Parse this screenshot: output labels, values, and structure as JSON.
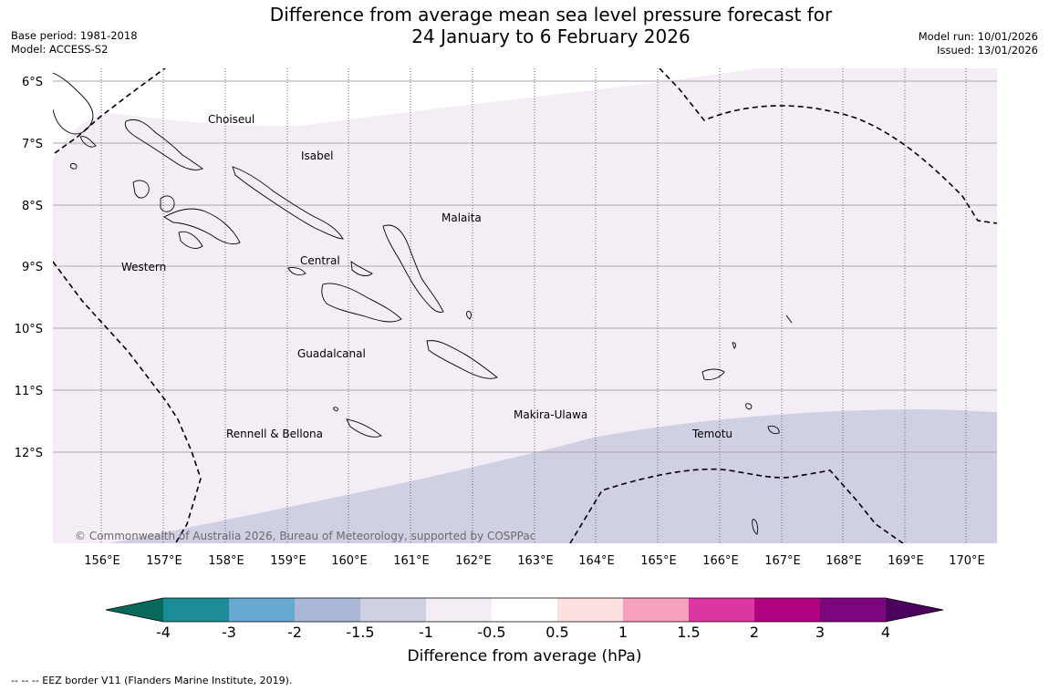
{
  "title": {
    "line1": "Difference from average mean sea level pressure forecast for",
    "line2": "24 January to 6 February 2026"
  },
  "meta": {
    "base_period": "Base period: 1981-2018",
    "model": "Model: ACCESS-S2",
    "model_run": "Model run: 10/01/2026",
    "issued": "Issued: 13/01/2026"
  },
  "map": {
    "lat_labels": [
      "6°S",
      "7°S",
      "8°S",
      "9°S",
      "10°S",
      "11°S",
      "12°S"
    ],
    "lon_labels": [
      "156°E",
      "157°E",
      "158°E",
      "159°E",
      "160°E",
      "161°E",
      "162°E",
      "163°E",
      "164°E",
      "165°E",
      "166°E",
      "167°E",
      "168°E",
      "169°E",
      "170°E"
    ],
    "province_labels": [
      "Choiseul",
      "Isabel",
      "Malaita",
      "Western",
      "Central",
      "Guadalcanal",
      "Makira-Ulawa",
      "Rennell & Bellona",
      "Temotu"
    ],
    "copyright": "© Commonwealth of Australia 2026, Bureau of Meteorology, supported by COSPPac",
    "colors": {
      "lavender": "#f4edf6",
      "blue_grey": "#cfd0e4",
      "white": "#ffffff"
    }
  },
  "colorbar": {
    "title": "Difference from average (hPa)",
    "ticks": [
      "-4",
      "-3",
      "-2",
      "-1.5",
      "-1",
      "-0.5",
      "0.5",
      "1",
      "1.5",
      "2",
      "3",
      "4"
    ],
    "colors": [
      "#06695b",
      "#1c8c96",
      "#66a8d0",
      "#a8b8d6",
      "#cfd0e4",
      "#f4edf6",
      "#ffffff",
      "#fde0e0",
      "#f7a0bd",
      "#dc37a0",
      "#b0037f",
      "#7d057d",
      "#4a025c"
    ]
  },
  "footnote": "--  --  -- EEZ border V11 (Flanders Marine Institute, 2019)."
}
